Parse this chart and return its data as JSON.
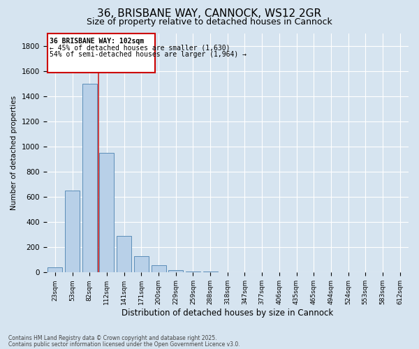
{
  "title": "36, BRISBANE WAY, CANNOCK, WS12 2GR",
  "subtitle": "Size of property relative to detached houses in Cannock",
  "xlabel": "Distribution of detached houses by size in Cannock",
  "ylabel": "Number of detached properties",
  "footnote1": "Contains HM Land Registry data © Crown copyright and database right 2025.",
  "footnote2": "Contains public sector information licensed under the Open Government Licence v3.0.",
  "categories": [
    "23sqm",
    "53sqm",
    "82sqm",
    "112sqm",
    "141sqm",
    "171sqm",
    "200sqm",
    "229sqm",
    "259sqm",
    "288sqm",
    "318sqm",
    "347sqm",
    "377sqm",
    "406sqm",
    "435sqm",
    "465sqm",
    "494sqm",
    "524sqm",
    "553sqm",
    "583sqm",
    "612sqm"
  ],
  "bar_counts": [
    40,
    650,
    1500,
    950,
    290,
    130,
    60,
    20,
    5,
    5,
    0,
    0,
    0,
    0,
    0,
    0,
    0,
    0,
    0,
    0,
    0
  ],
  "bar_color": "#b8d0e8",
  "bar_edge_color": "#5b8db8",
  "annotation_box_color": "#cc0000",
  "annotation_bg": "#ffffff",
  "annotation_text1": "36 BRISBANE WAY: 102sqm",
  "annotation_text2": "← 45% of detached houses are smaller (1,630)",
  "annotation_text3": "54% of semi-detached houses are larger (1,964) →",
  "red_line_x": 2.5,
  "ylim": [
    0,
    1900
  ],
  "yticks": [
    0,
    200,
    400,
    600,
    800,
    1000,
    1200,
    1400,
    1600,
    1800
  ],
  "bg_color": "#d6e4f0",
  "plot_bg": "#d6e4f0",
  "grid_color": "#ffffff",
  "title_fontsize": 11,
  "subtitle_fontsize": 9
}
